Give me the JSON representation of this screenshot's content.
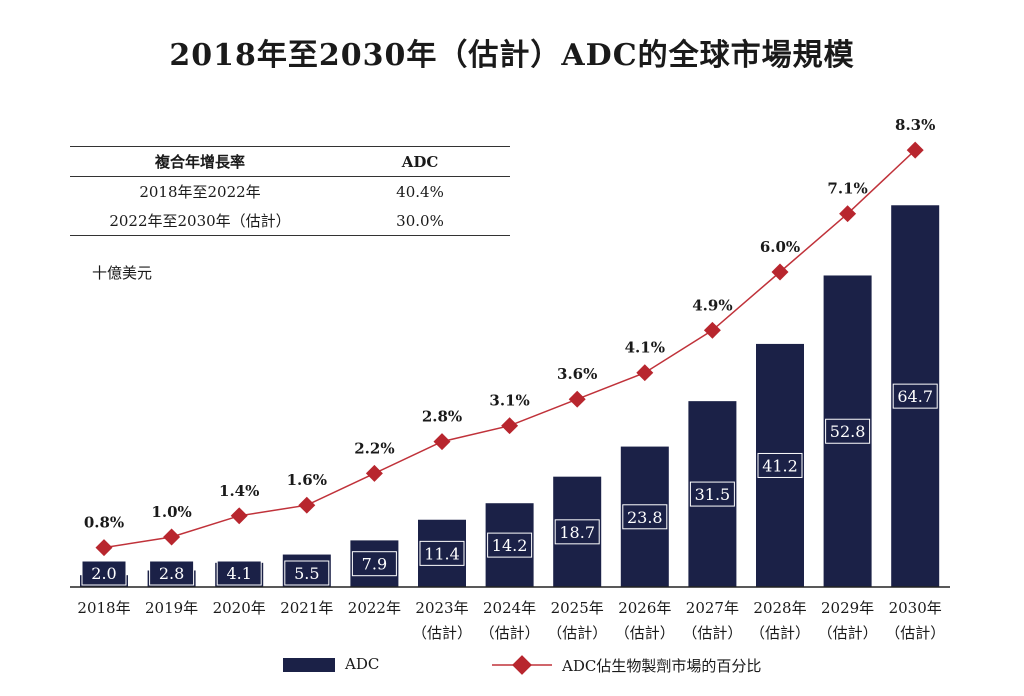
{
  "title": "2018年至2030年（估計）ADC的全球市場規模",
  "cagr_table": {
    "headers": [
      "複合年增長率",
      "ADC"
    ],
    "rows": [
      [
        "2018年至2022年",
        "40.4%"
      ],
      [
        "2022年至2030年（估計）",
        "30.0%"
      ]
    ]
  },
  "unit_label": "十億美元",
  "legend": {
    "bar": "ADC",
    "line": "ADC佔生物製劑市場的百分比"
  },
  "colors": {
    "bar": "#1b2147",
    "line": "#c0323a",
    "marker": "#b8262e"
  },
  "chart_data": {
    "type": "bar",
    "categories": [
      [
        "2018年",
        ""
      ],
      [
        "2019年",
        ""
      ],
      [
        "2020年",
        ""
      ],
      [
        "2021年",
        ""
      ],
      [
        "2022年",
        ""
      ],
      [
        "2023年",
        "（估計）"
      ],
      [
        "2024年",
        "（估計）"
      ],
      [
        "2025年",
        "（估計）"
      ],
      [
        "2026年",
        "（估計）"
      ],
      [
        "2027年",
        "（估計）"
      ],
      [
        "2028年",
        "（估計）"
      ],
      [
        "2029年",
        "（估計）"
      ],
      [
        "2030年",
        "（估計）"
      ]
    ],
    "series": [
      {
        "name": "ADC",
        "type": "bar",
        "values": [
          2.0,
          2.8,
          4.1,
          5.5,
          7.9,
          11.4,
          14.2,
          18.7,
          23.8,
          31.5,
          41.2,
          52.8,
          64.7
        ],
        "labels": [
          "2.0",
          "2.8",
          "4.1",
          "5.5",
          "7.9",
          "11.4",
          "14.2",
          "18.7",
          "23.8",
          "31.5",
          "41.2",
          "52.8",
          "64.7"
        ]
      },
      {
        "name": "ADC佔生物製劑市場的百分比",
        "type": "line",
        "values": [
          0.8,
          1.0,
          1.4,
          1.6,
          2.2,
          2.8,
          3.1,
          3.6,
          4.1,
          4.9,
          6.0,
          7.1,
          8.3
        ],
        "labels": [
          "0.8%",
          "1.0%",
          "1.4%",
          "1.6%",
          "2.2%",
          "2.8%",
          "3.1%",
          "3.6%",
          "4.1%",
          "4.9%",
          "6.0%",
          "7.1%",
          "8.3%"
        ]
      }
    ],
    "ylim_bar": [
      0,
      70
    ],
    "ylim_line": [
      0,
      9
    ]
  }
}
